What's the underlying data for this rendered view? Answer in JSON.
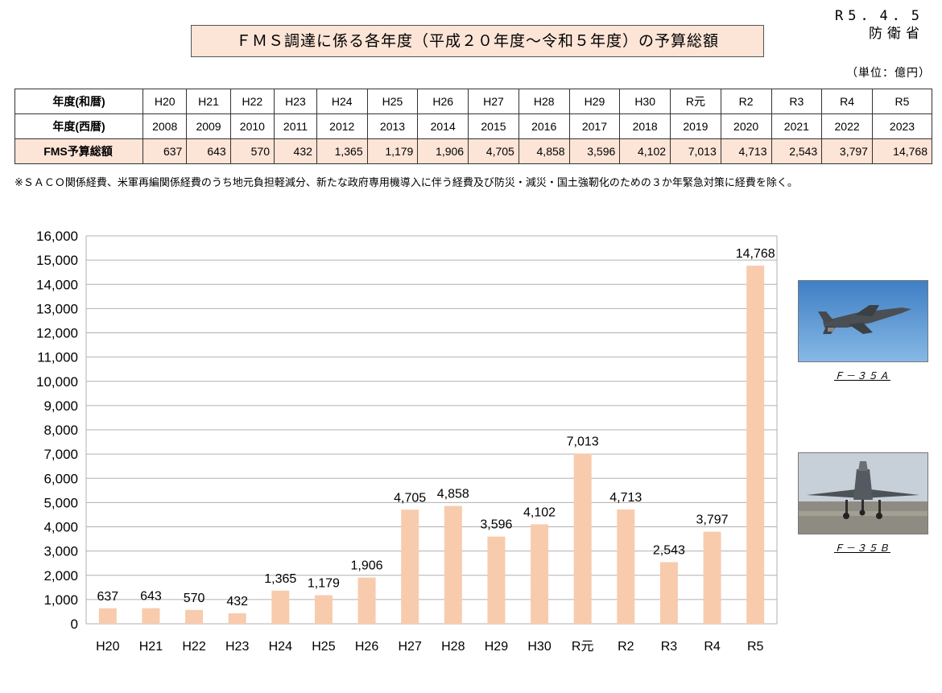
{
  "header": {
    "title": "ＦＭＳ調達に係る各年度（平成２０年度～令和５年度）の予算総額",
    "date": "R5．4．5",
    "org": "防衛省",
    "unit": "（単位：億円）"
  },
  "table": {
    "row_labels": [
      "年度(和暦)",
      "年度(西暦)",
      "FMS予算総額"
    ],
    "wareki": [
      "H20",
      "H21",
      "H22",
      "H23",
      "H24",
      "H25",
      "H26",
      "H27",
      "H28",
      "H29",
      "H30",
      "R元",
      "R2",
      "R3",
      "R4",
      "R5"
    ],
    "seireki": [
      "2008",
      "2009",
      "2010",
      "2011",
      "2012",
      "2013",
      "2014",
      "2015",
      "2016",
      "2017",
      "2018",
      "2019",
      "2020",
      "2021",
      "2022",
      "2023"
    ],
    "amounts": [
      "637",
      "643",
      "570",
      "432",
      "1,365",
      "1,179",
      "1,906",
      "4,705",
      "4,858",
      "3,596",
      "4,102",
      "7,013",
      "4,713",
      "2,543",
      "3,797",
      "14,768"
    ]
  },
  "note": "※ＳＡＣＯ関係経費、米軍再編関係経費のうち地元負担軽減分、新たな政府専用機導入に伴う経費及び防災・減災・国土強靭化のための３か年緊急対策に経費を除く。",
  "chart_data": {
    "type": "bar",
    "categories": [
      "H20",
      "H21",
      "H22",
      "H23",
      "H24",
      "H25",
      "H26",
      "H27",
      "H28",
      "H29",
      "H30",
      "R元",
      "R2",
      "R3",
      "R4",
      "R5"
    ],
    "values": [
      637,
      643,
      570,
      432,
      1365,
      1179,
      1906,
      4705,
      4858,
      3596,
      4102,
      7013,
      4713,
      2543,
      3797,
      14768
    ],
    "value_labels": [
      "637",
      "643",
      "570",
      "432",
      "1,365",
      "1,179",
      "1,906",
      "4,705",
      "4,858",
      "3,596",
      "4,102",
      "7,013",
      "4,713",
      "2,543",
      "3,797",
      "14,768"
    ],
    "ylim": [
      0,
      16000
    ],
    "yticks": [
      0,
      1000,
      2000,
      3000,
      4000,
      5000,
      6000,
      7000,
      8000,
      9000,
      10000,
      11000,
      12000,
      13000,
      14000,
      15000,
      16000
    ],
    "ytick_labels": [
      "0",
      "1,000",
      "2,000",
      "3,000",
      "4,000",
      "5,000",
      "6,000",
      "7,000",
      "8,000",
      "9,000",
      "10,000",
      "11,000",
      "12,000",
      "13,000",
      "14,000",
      "15,000",
      "16,000"
    ],
    "grid": true,
    "bar_color": "#f8cbad"
  },
  "images": [
    {
      "caption": "Ｆ－３５Ａ",
      "icon": "f35a-aircraft-photo"
    },
    {
      "caption": "Ｆ－３５Ｂ",
      "icon": "f35b-aircraft-photo"
    }
  ]
}
